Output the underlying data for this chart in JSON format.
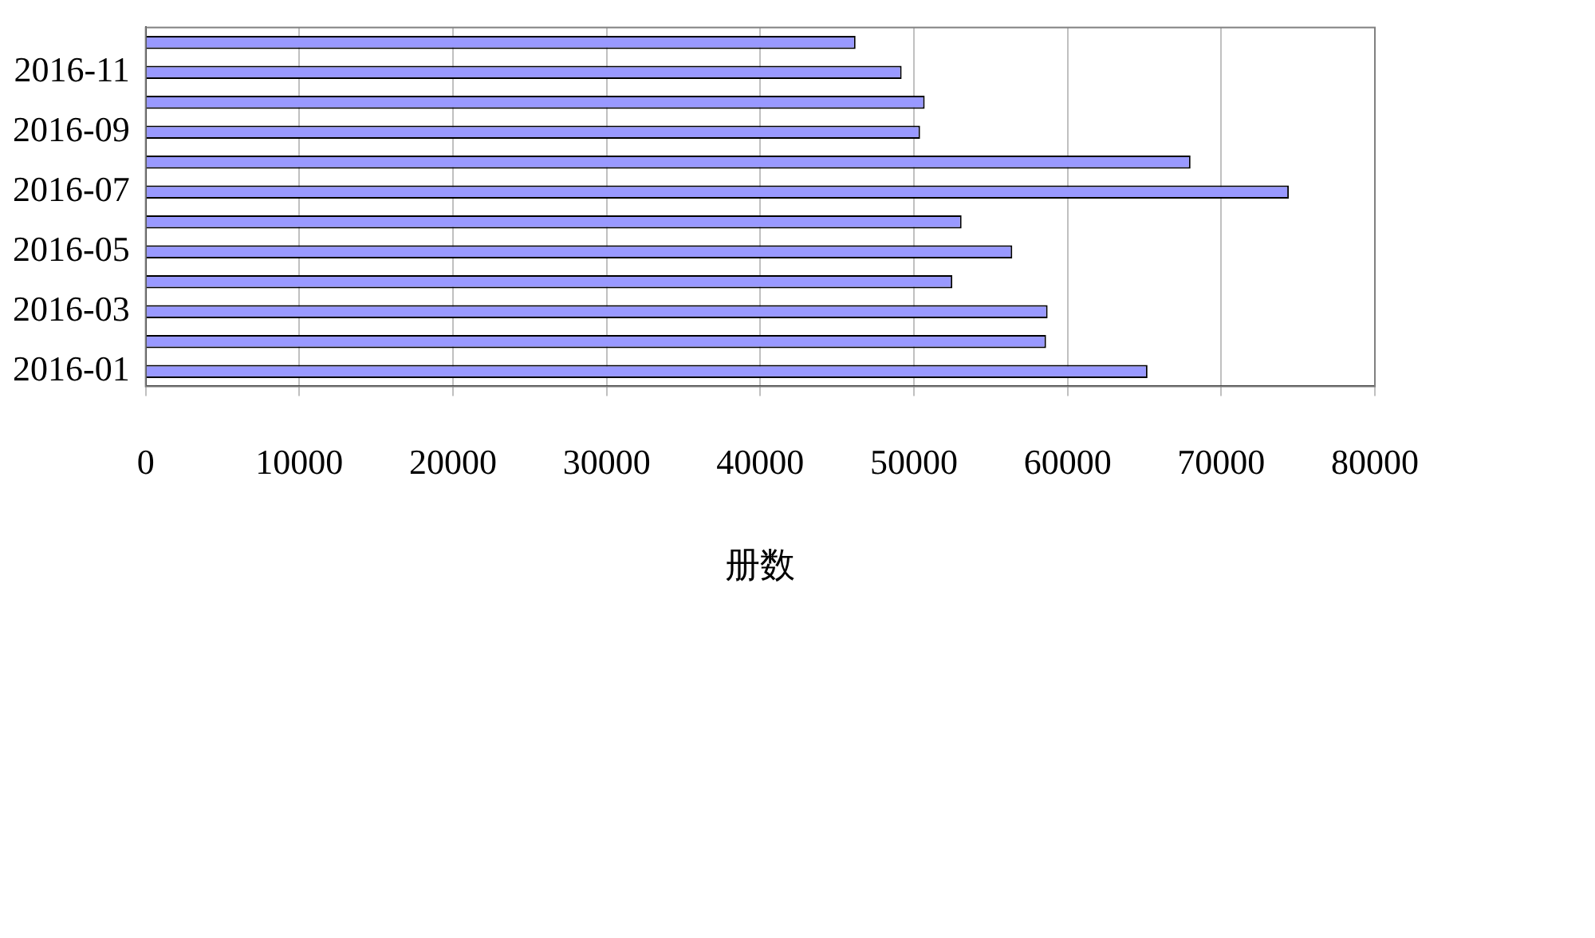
{
  "chart_data": {
    "type": "bar",
    "orientation": "horizontal",
    "xlabel": "册数",
    "categories": [
      null,
      "2016-11",
      null,
      "2016-09",
      null,
      "2016-07",
      null,
      "2016-05",
      null,
      "2016-03",
      null,
      "2016-01"
    ],
    "values": [
      46200,
      49200,
      50700,
      50400,
      68000,
      74400,
      53100,
      56400,
      52500,
      58700,
      58600,
      65200
    ],
    "color": "#9999ff",
    "xlim": [
      0,
      80000
    ],
    "xticks": [
      0,
      10000,
      20000,
      30000,
      40000,
      50000,
      60000,
      70000,
      80000
    ],
    "grid": "x",
    "legend": false
  }
}
